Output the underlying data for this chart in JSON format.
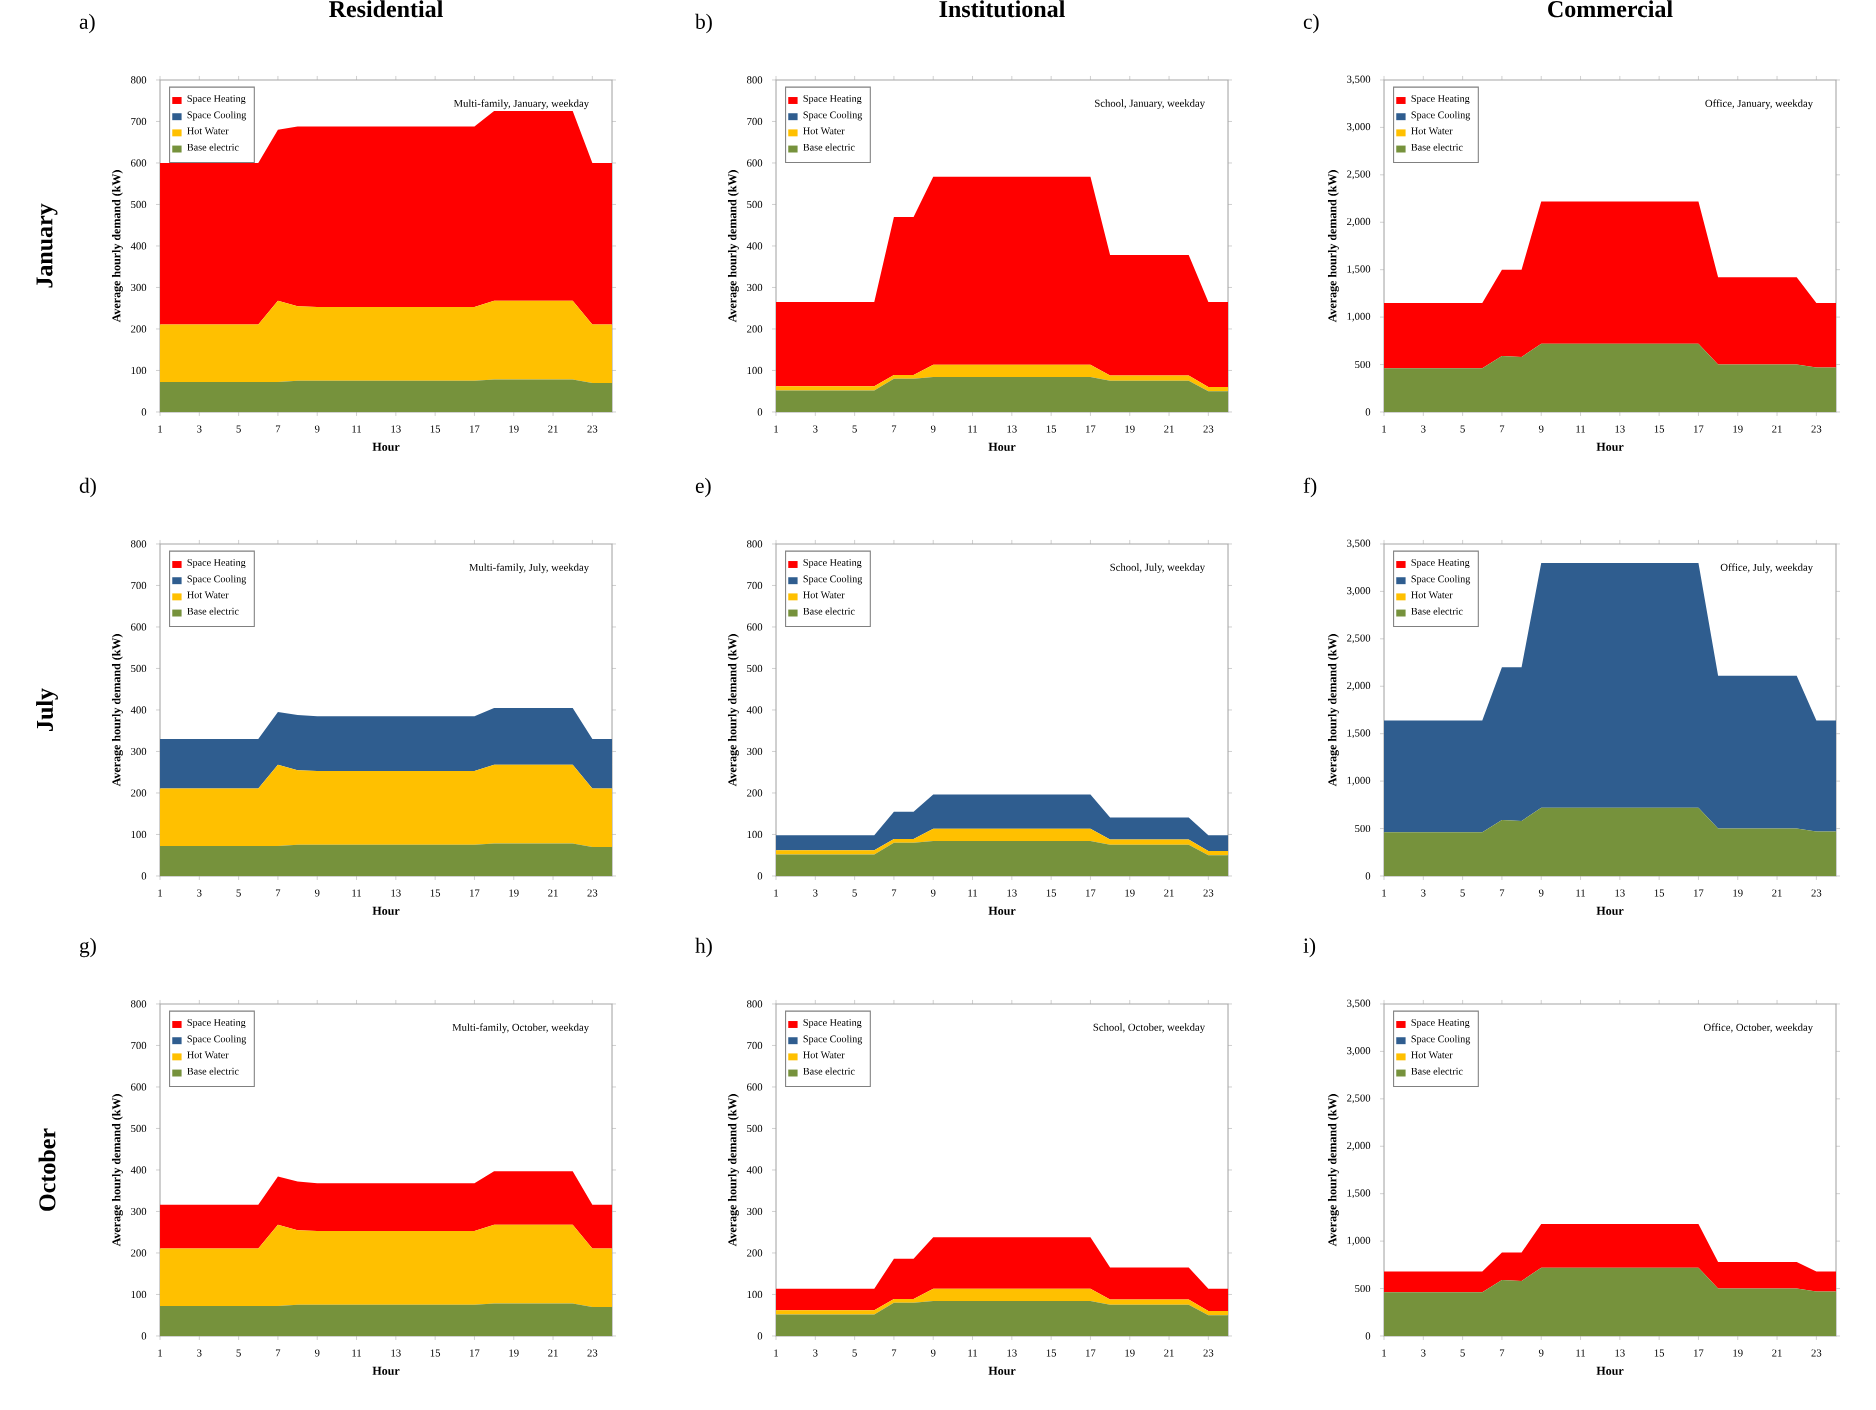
{
  "chart_data": [
    {
      "type": "area",
      "stacked": true,
      "title": "Residential",
      "xlabel": "Hour",
      "ylabel": "Average hourly demand (kW)",
      "x": [
        1,
        2,
        3,
        4,
        5,
        6,
        7,
        8,
        9,
        10,
        11,
        12,
        13,
        14,
        15,
        16,
        17,
        18,
        19,
        20,
        21,
        22,
        23,
        24
      ],
      "xlim": [
        1,
        24
      ],
      "xticks": [
        1,
        3,
        5,
        7,
        9,
        11,
        13,
        15,
        17,
        19,
        21,
        23
      ],
      "ylim": [
        0,
        800
      ],
      "yticks": [
        0,
        100,
        200,
        300,
        400,
        500,
        600,
        700,
        800
      ],
      "legend": "top left",
      "annotations": [
        "a)",
        "Multi-family, January, weekday",
        "January"
      ],
      "series": [
        {
          "name": "Base electric",
          "color": "#76923c",
          "values": [
            72,
            72,
            72,
            72,
            72,
            72,
            72,
            75,
            75,
            75,
            75,
            75,
            75,
            75,
            75,
            75,
            75,
            78,
            78,
            78,
            78,
            78,
            70,
            70
          ]
        },
        {
          "name": "Hot Water",
          "color": "#ffc000",
          "values": [
            139,
            139,
            139,
            139,
            139,
            139,
            196,
            180,
            178,
            178,
            178,
            178,
            178,
            178,
            178,
            178,
            178,
            190,
            190,
            190,
            190,
            190,
            141,
            141
          ]
        },
        {
          "name": "Space Cooling",
          "color": "#2f5d8f",
          "values": [
            null,
            null,
            null,
            null,
            null,
            null,
            null,
            null,
            null,
            null,
            null,
            null,
            null,
            null,
            null,
            null,
            null,
            null,
            null,
            null,
            null,
            null,
            null,
            null
          ]
        },
        {
          "name": "Space Heating",
          "color": "#ff0000",
          "values": [
            389,
            389,
            389,
            389,
            389,
            389,
            412,
            433,
            435,
            435,
            435,
            435,
            435,
            435,
            435,
            435,
            435,
            457,
            457,
            457,
            457,
            457,
            389,
            389
          ]
        }
      ]
    },
    {
      "type": "area",
      "stacked": true,
      "title": "Institutional",
      "xlabel": "Hour",
      "ylabel": "Average hourly demand (kW)",
      "x": [
        1,
        2,
        3,
        4,
        5,
        6,
        7,
        8,
        9,
        10,
        11,
        12,
        13,
        14,
        15,
        16,
        17,
        18,
        19,
        20,
        21,
        22,
        23,
        24
      ],
      "xlim": [
        1,
        24
      ],
      "xticks": [
        1,
        3,
        5,
        7,
        9,
        11,
        13,
        15,
        17,
        19,
        21,
        23
      ],
      "ylim": [
        0,
        800
      ],
      "yticks": [
        0,
        100,
        200,
        300,
        400,
        500,
        600,
        700,
        800
      ],
      "legend": "top left",
      "annotations": [
        "b)",
        "School, January, weekday"
      ],
      "series": [
        {
          "name": "Base electric",
          "color": "#76923c",
          "values": [
            52,
            52,
            52,
            52,
            52,
            52,
            80,
            80,
            84,
            84,
            84,
            84,
            84,
            84,
            84,
            84,
            84,
            75,
            75,
            75,
            75,
            75,
            50,
            50
          ]
        },
        {
          "name": "Hot Water",
          "color": "#ffc000",
          "values": [
            10,
            10,
            10,
            10,
            10,
            10,
            9,
            9,
            30,
            30,
            30,
            30,
            30,
            30,
            30,
            30,
            30,
            13,
            13,
            13,
            13,
            13,
            10,
            10
          ]
        },
        {
          "name": "Space Cooling",
          "color": "#2f5d8f",
          "values": [
            null,
            null,
            null,
            null,
            null,
            null,
            null,
            null,
            null,
            null,
            null,
            null,
            null,
            null,
            null,
            null,
            null,
            null,
            null,
            null,
            null,
            null,
            null,
            null
          ]
        },
        {
          "name": "Space Heating",
          "color": "#ff0000",
          "values": [
            203,
            203,
            203,
            203,
            203,
            203,
            381,
            381,
            453,
            453,
            453,
            453,
            453,
            453,
            453,
            453,
            453,
            290,
            290,
            290,
            290,
            290,
            205,
            205
          ]
        }
      ]
    },
    {
      "type": "area",
      "stacked": true,
      "title": "Commercial",
      "xlabel": "Hour",
      "ylabel": "Average hourly demand (kW)",
      "x": [
        1,
        2,
        3,
        4,
        5,
        6,
        7,
        8,
        9,
        10,
        11,
        12,
        13,
        14,
        15,
        16,
        17,
        18,
        19,
        20,
        21,
        22,
        23,
        24
      ],
      "xlim": [
        1,
        24
      ],
      "xticks": [
        1,
        3,
        5,
        7,
        9,
        11,
        13,
        15,
        17,
        19,
        21,
        23
      ],
      "ylim": [
        0,
        3500
      ],
      "yticks": [
        0,
        500,
        {
          "value": 1000,
          "label": "1,000"
        },
        {
          "value": 1500,
          "label": "1,500"
        },
        {
          "value": 2000,
          "label": "2,000"
        },
        {
          "value": 2500,
          "label": "2,500"
        },
        {
          "value": 3000,
          "label": "3,000"
        },
        {
          "value": 3500,
          "label": "3,500"
        }
      ],
      "legend": "top left",
      "annotations": [
        "c)",
        "Office, January, weekday"
      ],
      "series": [
        {
          "name": "Base electric",
          "color": "#76923c",
          "values": [
            460,
            460,
            460,
            460,
            460,
            460,
            590,
            580,
            720,
            720,
            720,
            720,
            720,
            720,
            720,
            720,
            720,
            500,
            500,
            500,
            500,
            500,
            470,
            470
          ]
        },
        {
          "name": "Hot Water",
          "color": "#ffc000",
          "values": [
            null,
            null,
            null,
            null,
            null,
            null,
            null,
            null,
            null,
            null,
            null,
            null,
            null,
            null,
            null,
            null,
            null,
            null,
            null,
            null,
            null,
            null,
            null,
            null
          ]
        },
        {
          "name": "Space Cooling",
          "color": "#2f5d8f",
          "values": [
            null,
            null,
            null,
            null,
            null,
            null,
            null,
            null,
            null,
            null,
            null,
            null,
            null,
            null,
            null,
            null,
            null,
            null,
            null,
            null,
            null,
            null,
            null,
            null
          ]
        },
        {
          "name": "Space Heating",
          "color": "#ff0000",
          "values": [
            690,
            690,
            690,
            690,
            690,
            690,
            910,
            920,
            1500,
            1500,
            1500,
            1500,
            1500,
            1500,
            1500,
            1500,
            1500,
            920,
            920,
            920,
            920,
            920,
            680,
            680
          ]
        }
      ]
    },
    {
      "type": "area",
      "stacked": true,
      "xlabel": "Hour",
      "ylabel": "Average hourly demand (kW)",
      "x": [
        1,
        2,
        3,
        4,
        5,
        6,
        7,
        8,
        9,
        10,
        11,
        12,
        13,
        14,
        15,
        16,
        17,
        18,
        19,
        20,
        21,
        22,
        23,
        24
      ],
      "xlim": [
        1,
        24
      ],
      "xticks": [
        1,
        3,
        5,
        7,
        9,
        11,
        13,
        15,
        17,
        19,
        21,
        23
      ],
      "ylim": [
        0,
        800
      ],
      "yticks": [
        0,
        100,
        200,
        300,
        400,
        500,
        600,
        700,
        800
      ],
      "legend": "top left",
      "annotations": [
        "d)",
        "Multi-family, July, weekday",
        "July"
      ],
      "series": [
        {
          "name": "Base electric",
          "color": "#76923c",
          "values": [
            72,
            72,
            72,
            72,
            72,
            72,
            72,
            75,
            75,
            75,
            75,
            75,
            75,
            75,
            75,
            75,
            75,
            78,
            78,
            78,
            78,
            78,
            70,
            70
          ]
        },
        {
          "name": "Hot Water",
          "color": "#ffc000",
          "values": [
            139,
            139,
            139,
            139,
            139,
            139,
            196,
            180,
            178,
            178,
            178,
            178,
            178,
            178,
            178,
            178,
            178,
            190,
            190,
            190,
            190,
            190,
            141,
            141
          ]
        },
        {
          "name": "Space Cooling",
          "color": "#2f5d8f",
          "values": [
            119,
            119,
            119,
            119,
            119,
            119,
            127,
            133,
            132,
            132,
            132,
            132,
            132,
            132,
            132,
            132,
            132,
            137,
            137,
            137,
            137,
            137,
            119,
            119
          ]
        },
        {
          "name": "Space Heating",
          "color": "#ff0000",
          "values": [
            null,
            null,
            null,
            null,
            null,
            null,
            null,
            null,
            null,
            null,
            null,
            null,
            null,
            null,
            null,
            null,
            null,
            null,
            null,
            null,
            null,
            null,
            null,
            null
          ]
        }
      ]
    },
    {
      "type": "area",
      "stacked": true,
      "xlabel": "Hour",
      "ylabel": "Average hourly demand (kW)",
      "x": [
        1,
        2,
        3,
        4,
        5,
        6,
        7,
        8,
        9,
        10,
        11,
        12,
        13,
        14,
        15,
        16,
        17,
        18,
        19,
        20,
        21,
        22,
        23,
        24
      ],
      "xlim": [
        1,
        24
      ],
      "xticks": [
        1,
        3,
        5,
        7,
        9,
        11,
        13,
        15,
        17,
        19,
        21,
        23
      ],
      "ylim": [
        0,
        800
      ],
      "yticks": [
        0,
        100,
        200,
        300,
        400,
        500,
        600,
        700,
        800
      ],
      "legend": "top left",
      "annotations": [
        "e)",
        "School, July, weekday"
      ],
      "series": [
        {
          "name": "Base electric",
          "color": "#76923c",
          "values": [
            52,
            52,
            52,
            52,
            52,
            52,
            80,
            80,
            84,
            84,
            84,
            84,
            84,
            84,
            84,
            84,
            84,
            75,
            75,
            75,
            75,
            75,
            50,
            50
          ]
        },
        {
          "name": "Hot Water",
          "color": "#ffc000",
          "values": [
            10,
            10,
            10,
            10,
            10,
            10,
            9,
            9,
            30,
            30,
            30,
            30,
            30,
            30,
            30,
            30,
            30,
            13,
            13,
            13,
            13,
            13,
            10,
            10
          ]
        },
        {
          "name": "Space Cooling",
          "color": "#2f5d8f",
          "values": [
            36,
            36,
            36,
            36,
            36,
            36,
            66,
            66,
            82,
            82,
            82,
            82,
            82,
            82,
            82,
            82,
            82,
            53,
            53,
            53,
            53,
            53,
            38,
            38
          ]
        },
        {
          "name": "Space Heating",
          "color": "#ff0000",
          "values": [
            null,
            null,
            null,
            null,
            null,
            null,
            null,
            null,
            null,
            null,
            null,
            null,
            null,
            null,
            null,
            null,
            null,
            null,
            null,
            null,
            null,
            null,
            null,
            null
          ]
        }
      ]
    },
    {
      "type": "area",
      "stacked": true,
      "xlabel": "Hour",
      "ylabel": "Average hourly demand (kW)",
      "x": [
        1,
        2,
        3,
        4,
        5,
        6,
        7,
        8,
        9,
        10,
        11,
        12,
        13,
        14,
        15,
        16,
        17,
        18,
        19,
        20,
        21,
        22,
        23,
        24
      ],
      "xlim": [
        1,
        24
      ],
      "xticks": [
        1,
        3,
        5,
        7,
        9,
        11,
        13,
        15,
        17,
        19,
        21,
        23
      ],
      "ylim": [
        0,
        3500
      ],
      "yticks": [
        0,
        500,
        {
          "value": 1000,
          "label": "1,000"
        },
        {
          "value": 1500,
          "label": "1,500"
        },
        {
          "value": 2000,
          "label": "2,000"
        },
        {
          "value": 2500,
          "label": "2,500"
        },
        {
          "value": 3000,
          "label": "3,000"
        },
        {
          "value": 3500,
          "label": "3,500"
        }
      ],
      "legend": "top left",
      "annotations": [
        "f)",
        "Office, July, weekday"
      ],
      "series": [
        {
          "name": "Base electric",
          "color": "#76923c",
          "values": [
            460,
            460,
            460,
            460,
            460,
            460,
            590,
            580,
            720,
            720,
            720,
            720,
            720,
            720,
            720,
            720,
            720,
            500,
            500,
            500,
            500,
            500,
            470,
            470
          ]
        },
        {
          "name": "Hot Water",
          "color": "#ffc000",
          "values": [
            null,
            null,
            null,
            null,
            null,
            null,
            null,
            null,
            null,
            null,
            null,
            null,
            null,
            null,
            null,
            null,
            null,
            null,
            null,
            null,
            null,
            null,
            null,
            null
          ]
        },
        {
          "name": "Space Cooling",
          "color": "#2f5d8f",
          "values": [
            1180,
            1180,
            1180,
            1180,
            1180,
            1180,
            1610,
            1620,
            2580,
            2580,
            2580,
            2580,
            2580,
            2580,
            2580,
            2580,
            2580,
            1610,
            1610,
            1610,
            1610,
            1610,
            1170,
            1170
          ]
        },
        {
          "name": "Space Heating",
          "color": "#ff0000",
          "values": [
            null,
            null,
            null,
            null,
            null,
            null,
            null,
            null,
            null,
            null,
            null,
            null,
            null,
            null,
            null,
            null,
            null,
            null,
            null,
            null,
            null,
            null,
            null,
            null
          ]
        }
      ]
    },
    {
      "type": "area",
      "stacked": true,
      "xlabel": "Hour",
      "ylabel": "Average hourly demand (kW)",
      "x": [
        1,
        2,
        3,
        4,
        5,
        6,
        7,
        8,
        9,
        10,
        11,
        12,
        13,
        14,
        15,
        16,
        17,
        18,
        19,
        20,
        21,
        22,
        23,
        24
      ],
      "xlim": [
        1,
        24
      ],
      "xticks": [
        1,
        3,
        5,
        7,
        9,
        11,
        13,
        15,
        17,
        19,
        21,
        23
      ],
      "ylim": [
        0,
        800
      ],
      "yticks": [
        0,
        100,
        200,
        300,
        400,
        500,
        600,
        700,
        800
      ],
      "legend": "top left",
      "annotations": [
        "g)",
        "Multi-family, October, weekday",
        "October"
      ],
      "series": [
        {
          "name": "Base electric",
          "color": "#76923c",
          "values": [
            72,
            72,
            72,
            72,
            72,
            72,
            72,
            75,
            75,
            75,
            75,
            75,
            75,
            75,
            75,
            75,
            75,
            78,
            78,
            78,
            78,
            78,
            70,
            70
          ]
        },
        {
          "name": "Hot Water",
          "color": "#ffc000",
          "values": [
            139,
            139,
            139,
            139,
            139,
            139,
            196,
            180,
            178,
            178,
            178,
            178,
            178,
            178,
            178,
            178,
            178,
            190,
            190,
            190,
            190,
            190,
            141,
            141
          ]
        },
        {
          "name": "Space Cooling",
          "color": "#2f5d8f",
          "values": [
            null,
            null,
            null,
            null,
            null,
            null,
            null,
            null,
            null,
            null,
            null,
            null,
            null,
            null,
            null,
            null,
            null,
            null,
            null,
            null,
            null,
            null,
            null,
            null
          ]
        },
        {
          "name": "Space Heating",
          "color": "#ff0000",
          "values": [
            105,
            105,
            105,
            105,
            105,
            105,
            116,
            117,
            115,
            115,
            115,
            115,
            115,
            115,
            115,
            115,
            115,
            129,
            129,
            129,
            129,
            129,
            105,
            105
          ]
        }
      ]
    },
    {
      "type": "area",
      "stacked": true,
      "xlabel": "Hour",
      "ylabel": "Average hourly demand (kW)",
      "x": [
        1,
        2,
        3,
        4,
        5,
        6,
        7,
        8,
        9,
        10,
        11,
        12,
        13,
        14,
        15,
        16,
        17,
        18,
        19,
        20,
        21,
        22,
        23,
        24
      ],
      "xlim": [
        1,
        24
      ],
      "xticks": [
        1,
        3,
        5,
        7,
        9,
        11,
        13,
        15,
        17,
        19,
        21,
        23
      ],
      "ylim": [
        0,
        800
      ],
      "yticks": [
        0,
        100,
        200,
        300,
        400,
        500,
        600,
        700,
        800
      ],
      "legend": "top left",
      "annotations": [
        "h)",
        "School, October, weekday"
      ],
      "series": [
        {
          "name": "Base electric",
          "color": "#76923c",
          "values": [
            52,
            52,
            52,
            52,
            52,
            52,
            80,
            80,
            84,
            84,
            84,
            84,
            84,
            84,
            84,
            84,
            84,
            75,
            75,
            75,
            75,
            75,
            50,
            50
          ]
        },
        {
          "name": "Hot Water",
          "color": "#ffc000",
          "values": [
            10,
            10,
            10,
            10,
            10,
            10,
            9,
            9,
            30,
            30,
            30,
            30,
            30,
            30,
            30,
            30,
            30,
            13,
            13,
            13,
            13,
            13,
            10,
            10
          ]
        },
        {
          "name": "Space Cooling",
          "color": "#2f5d8f",
          "values": [
            null,
            null,
            null,
            null,
            null,
            null,
            null,
            null,
            null,
            null,
            null,
            null,
            null,
            null,
            null,
            null,
            null,
            null,
            null,
            null,
            null,
            null,
            null,
            null
          ]
        },
        {
          "name": "Space Heating",
          "color": "#ff0000",
          "values": [
            52,
            52,
            52,
            52,
            52,
            52,
            97,
            97,
            124,
            124,
            124,
            124,
            124,
            124,
            124,
            124,
            124,
            77,
            77,
            77,
            77,
            77,
            54,
            54
          ]
        }
      ]
    },
    {
      "type": "area",
      "stacked": true,
      "xlabel": "Hour",
      "ylabel": "Average hourly demand (kW)",
      "x": [
        1,
        2,
        3,
        4,
        5,
        6,
        7,
        8,
        9,
        10,
        11,
        12,
        13,
        14,
        15,
        16,
        17,
        18,
        19,
        20,
        21,
        22,
        23,
        24
      ],
      "xlim": [
        1,
        24
      ],
      "xticks": [
        1,
        3,
        5,
        7,
        9,
        11,
        13,
        15,
        17,
        19,
        21,
        23
      ],
      "ylim": [
        0,
        3500
      ],
      "yticks": [
        0,
        500,
        {
          "value": 1000,
          "label": "1,000"
        },
        {
          "value": 1500,
          "label": "1,500"
        },
        {
          "value": 2000,
          "label": "2,000"
        },
        {
          "value": 2500,
          "label": "2,500"
        },
        {
          "value": 3000,
          "label": "3,000"
        },
        {
          "value": 3500,
          "label": "3,500"
        }
      ],
      "legend": "top left",
      "annotations": [
        "i)",
        "Office, October, weekday"
      ],
      "series": [
        {
          "name": "Base electric",
          "color": "#76923c",
          "values": [
            460,
            460,
            460,
            460,
            460,
            460,
            590,
            580,
            720,
            720,
            720,
            720,
            720,
            720,
            720,
            720,
            720,
            500,
            500,
            500,
            500,
            500,
            470,
            470
          ]
        },
        {
          "name": "Hot Water",
          "color": "#ffc000",
          "values": [
            null,
            null,
            null,
            null,
            null,
            null,
            null,
            null,
            null,
            null,
            null,
            null,
            null,
            null,
            null,
            null,
            null,
            null,
            null,
            null,
            null,
            null,
            null,
            null
          ]
        },
        {
          "name": "Space Cooling",
          "color": "#2f5d8f",
          "values": [
            null,
            null,
            null,
            null,
            null,
            null,
            null,
            null,
            null,
            null,
            null,
            null,
            null,
            null,
            null,
            null,
            null,
            null,
            null,
            null,
            null,
            null,
            null,
            null
          ]
        },
        {
          "name": "Space Heating",
          "color": "#ff0000",
          "values": [
            220,
            220,
            220,
            220,
            220,
            220,
            290,
            300,
            460,
            460,
            460,
            460,
            460,
            460,
            460,
            460,
            460,
            280,
            280,
            280,
            280,
            280,
            210,
            210
          ]
        }
      ]
    }
  ]
}
